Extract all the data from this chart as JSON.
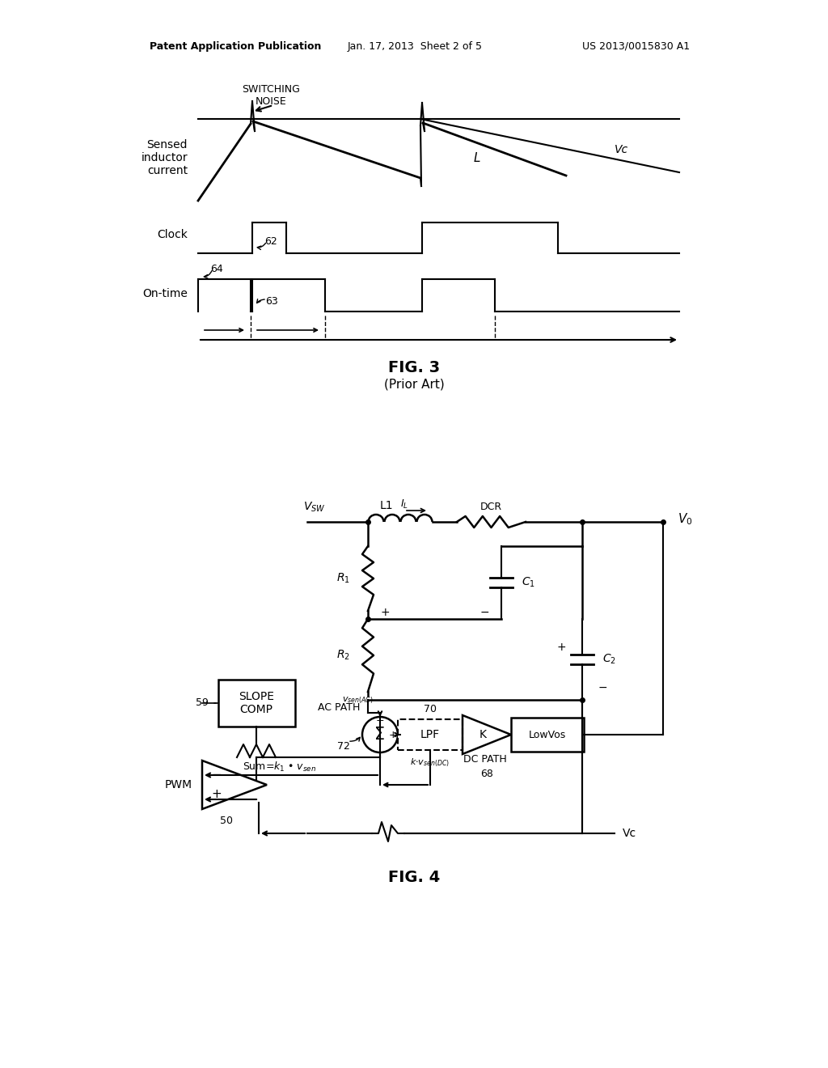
{
  "bg_color": "#ffffff",
  "header_left": "Patent Application Publication",
  "header_center": "Jan. 17, 2013  Sheet 2 of 5",
  "header_right": "US 2013/0015830 A1",
  "fig3_title": "FIG. 3",
  "fig3_subtitle": "(Prior Art)",
  "fig4_title": "FIG. 4"
}
